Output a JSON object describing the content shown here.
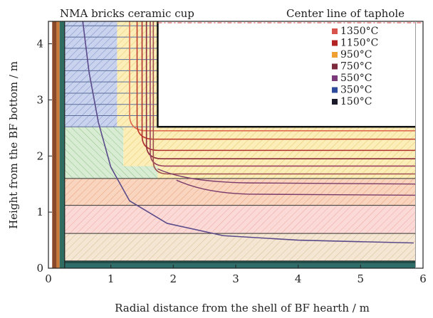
{
  "chart_data": {
    "type": "contour",
    "xlabel": "Radial distance from the shell of BF hearth / m",
    "ylabel": "Height from the BF bottom / m",
    "xlim": [
      0,
      6
    ],
    "ylim": [
      0,
      4.4
    ],
    "xticks": [
      "0",
      "1",
      "2",
      "3",
      "4",
      "5",
      "6"
    ],
    "yticks": [
      "0",
      "1",
      "2",
      "3",
      "4"
    ],
    "annotations": {
      "left": "NMA bricks ceramic cup",
      "right": "Center line of taphole"
    },
    "legend_position": "top-right",
    "legend": [
      {
        "label": "1350°C",
        "color": "#d9534f"
      },
      {
        "label": "1150°C",
        "color": "#b22222"
      },
      {
        "label": "950°C",
        "color": "#f0a030"
      },
      {
        "label": "750°C",
        "color": "#7a2a3a"
      },
      {
        "label": "550°C",
        "color": "#7a3a7a"
      },
      {
        "label": "350°C",
        "color": "#2e4a9a"
      },
      {
        "label": "150°C",
        "color": "#1a1a2a"
      }
    ],
    "isotherms_vertical_x": [
      1.3,
      1.42,
      1.5,
      1.57,
      1.63,
      1.68
    ],
    "isotherms_horizontal_y": [
      2.45,
      2.3,
      2.1,
      1.95,
      1.82,
      1.68,
      1.52,
      1.32
    ],
    "isotherm_150": [
      [
        0.55,
        4.4
      ],
      [
        0.65,
        3.5
      ],
      [
        0.8,
        2.6
      ],
      [
        1.0,
        1.8
      ],
      [
        1.3,
        1.2
      ],
      [
        1.9,
        0.8
      ],
      [
        2.8,
        0.58
      ],
      [
        4.0,
        0.5
      ],
      [
        5.85,
        0.45
      ]
    ]
  }
}
